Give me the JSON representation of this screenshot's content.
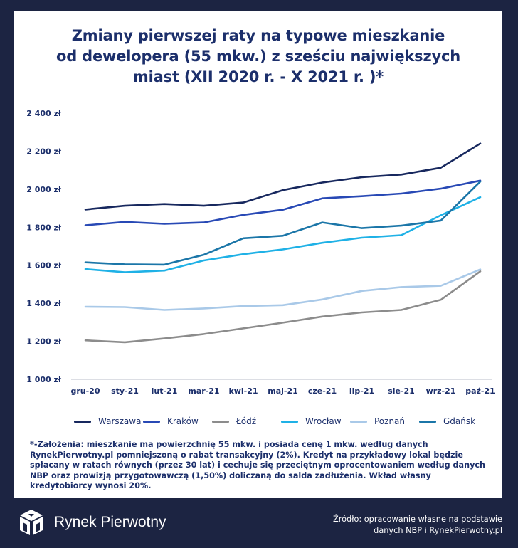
{
  "title_lines": [
    "Zmiany pierwszej raty na typowe mieszkanie",
    "od dewelopera (55 mkw.) z sześciu największych",
    "miast (XII 2020 r. - X 2021 r. )*"
  ],
  "chart_data": {
    "type": "line",
    "title": "Zmiany pierwszej raty na typowe mieszkanie od dewelopera (55 mkw.) z sześciu największych miast (XII 2020 r. - X 2021 r. )*",
    "categories": [
      "gru-20",
      "sty-21",
      "lut-21",
      "mar-21",
      "kwi-21",
      "maj-21",
      "cze-21",
      "lip-21",
      "sie-21",
      "wrz-21",
      "paź-21"
    ],
    "ylim": [
      1000,
      2400
    ],
    "yticks": [
      1000,
      1200,
      1400,
      1600,
      1800,
      2000,
      2200,
      2400
    ],
    "ytick_labels": [
      "1 000 zł",
      "1 200 zł",
      "1 400 zł",
      "1 600 zł",
      "1 800 zł",
      "2 000 zł",
      "2 200 zł",
      "2 400 zł"
    ],
    "grid": false,
    "legend_position": "bottom",
    "series": [
      {
        "name": "Warszawa",
        "color": "#17285e",
        "values": [
          1893,
          1913,
          1922,
          1913,
          1930,
          1995,
          2035,
          2063,
          2077,
          2113,
          2240
        ]
      },
      {
        "name": "Kraków",
        "color": "#2849b5",
        "values": [
          1810,
          1828,
          1818,
          1825,
          1865,
          1892,
          1952,
          1963,
          1977,
          2003,
          2045
        ]
      },
      {
        "name": "Łódź",
        "color": "#8c8c8c",
        "values": [
          1205,
          1195,
          1215,
          1238,
          1268,
          1298,
          1330,
          1352,
          1365,
          1418,
          1568
        ]
      },
      {
        "name": "Wrocław",
        "color": "#1fb1e6",
        "values": [
          1580,
          1563,
          1572,
          1625,
          1658,
          1683,
          1718,
          1745,
          1758,
          1863,
          1958
        ]
      },
      {
        "name": "Poznań",
        "color": "#a9c9e8",
        "values": [
          1382,
          1380,
          1365,
          1373,
          1385,
          1390,
          1420,
          1465,
          1485,
          1492,
          1578
        ]
      },
      {
        "name": "Gdańsk",
        "color": "#1b76a8",
        "values": [
          1615,
          1605,
          1603,
          1655,
          1742,
          1755,
          1825,
          1795,
          1808,
          1835,
          2040
        ]
      }
    ]
  },
  "note": "*-Założenia: mieszkanie ma powierzchnię 55 mkw. i posiada cenę 1 mkw. według danych RynekPierwotny.pl pomniejszoną o rabat transakcyjny (2%). Kredyt na przykładowy lokal będzie spłacany w ratach równych (przez 30 lat) i cechuje się przeciętnym oprocentowaniem według danych NBP oraz prowizją przygotowawczą (1,50%) doliczaną do salda zadłużenia. Wkład własny kredytobiorcy wynosi 20%.",
  "brand": {
    "name": "Rynek Pierwotny"
  },
  "source": {
    "line1": "Źródło: opracowanie własne na podstawie",
    "line2": "danych NBP i RynekPierwotny.pl"
  }
}
